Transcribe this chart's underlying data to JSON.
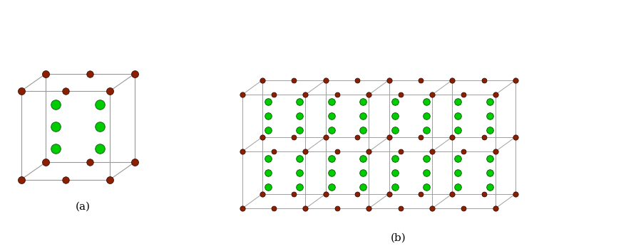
{
  "title_a": "(a)",
  "title_b": "(b)",
  "ti_color": "#8B2000",
  "f_color": "#00CC00",
  "bond_color": "#1a1a1a",
  "grid_color": "#999999",
  "bg_color": "#ffffff",
  "label_fontsize": 11,
  "m": 4,
  "n": 1,
  "t": 2
}
